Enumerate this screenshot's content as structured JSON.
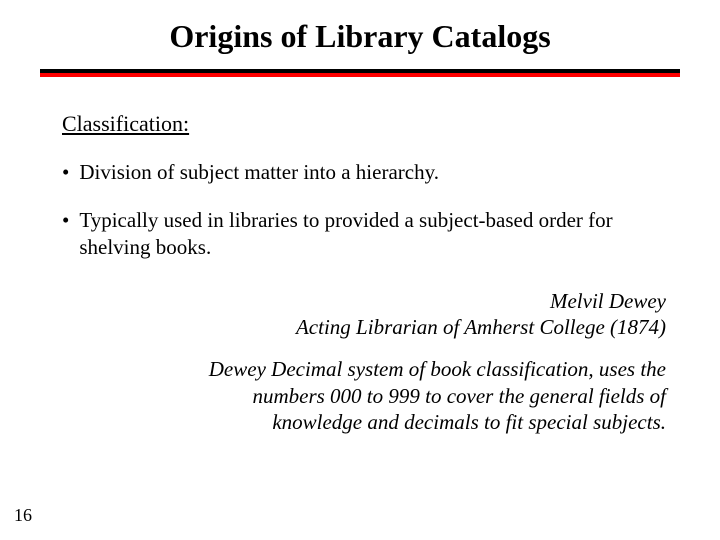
{
  "slide": {
    "title": "Origins of Library Catalogs",
    "subheading": "Classification:",
    "bullets": [
      "Division of subject matter into a hierarchy.",
      "Typically used in libraries to provided a subject-based order for shelving books."
    ],
    "attribution_line1": "Melvil Dewey",
    "attribution_line2": "Acting Librarian of Amherst College (1874)",
    "description": "Dewey Decimal system of book classification, uses the numbers 000 to 999 to cover the general fields of knowledge and decimals to fit special subjects.",
    "page_number": "16"
  },
  "colors": {
    "title_color": "#000000",
    "text_color": "#000000",
    "divider_top": "#000000",
    "divider_bottom": "#ff0000",
    "background": "#ffffff"
  },
  "typography": {
    "title_fontsize": 32,
    "body_fontsize": 21,
    "font_family": "Times New Roman"
  }
}
